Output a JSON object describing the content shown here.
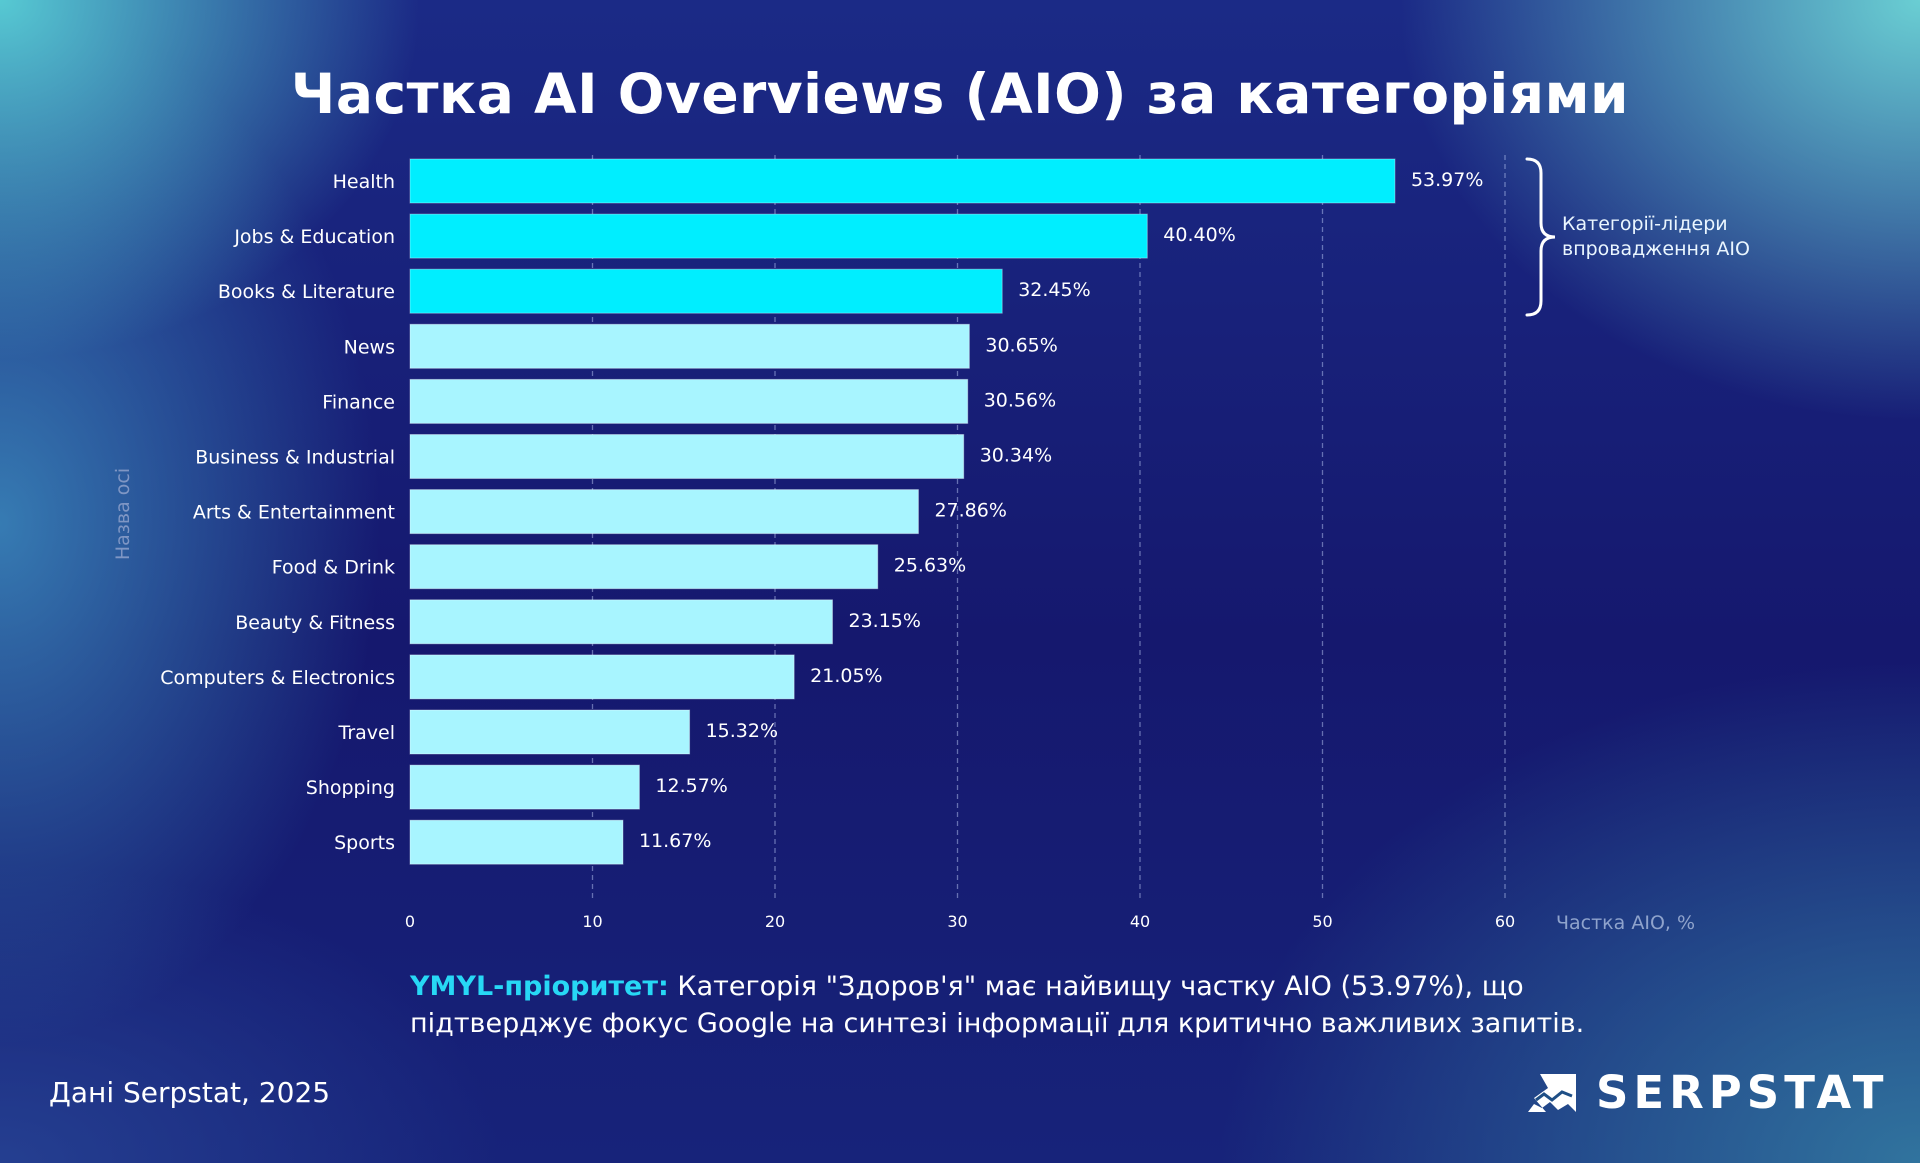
{
  "title": "Частка AI Overviews (AIO) за категоріями",
  "annotation": {
    "line1": "Категорії-лідери",
    "line2": "впровадження AIO"
  },
  "note": {
    "highlight": "YMYL-пріоритет:",
    "text": " Категорія \"Здоров'я\" має найвищу частку AIO (53.97%), що підтверджує фокус Google на синтезі інформації для критично важливих запитів."
  },
  "source": "Дані Serpstat, 2025",
  "logo": "SERPSTAT",
  "colors": {
    "leader": "#00EEFF",
    "other": "#A8F5FF"
  },
  "chart_data": {
    "type": "bar",
    "orientation": "horizontal",
    "categories": [
      "Health",
      "Jobs & Education",
      "Books & Literature",
      "News",
      "Finance",
      "Business & Industrial",
      "Arts & Entertainment",
      "Food & Drink",
      "Beauty & Fitness",
      "Computers & Electronics",
      "Travel",
      "Shopping",
      "Sports"
    ],
    "values": [
      53.97,
      40.4,
      32.45,
      30.65,
      30.56,
      30.34,
      27.86,
      25.63,
      23.15,
      21.05,
      15.32,
      12.57,
      11.67
    ],
    "value_labels": [
      "53.97%",
      "40.40%",
      "32.45%",
      "30.65%",
      "30.56%",
      "30.34%",
      "27.86%",
      "25.63%",
      "23.15%",
      "21.05%",
      "15.32%",
      "12.57%",
      "11.67%"
    ],
    "highlighted_count": 3,
    "xlabel": "Частка AIO, %",
    "ylabel": "Назва осі",
    "xlim": [
      0,
      60
    ],
    "xticks": [
      "0",
      "10",
      "20",
      "30",
      "40",
      "50",
      "60"
    ],
    "grid": "vertical dashed"
  }
}
